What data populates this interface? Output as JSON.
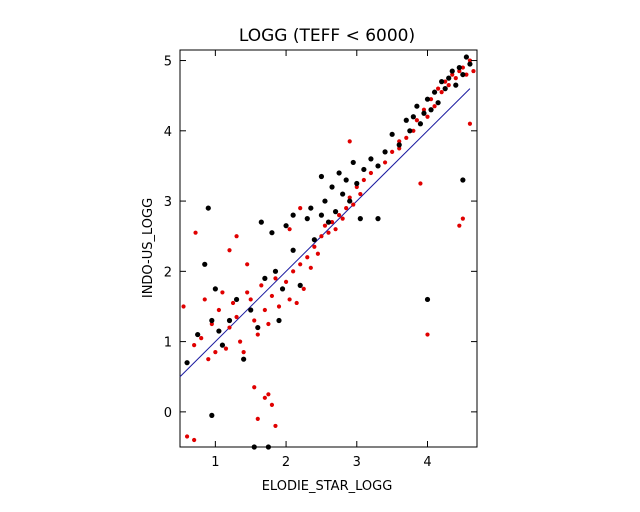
{
  "chart_data": {
    "type": "scatter",
    "title": "LOGG (TEFF < 6000)",
    "xlabel": "ELODIE_STAR_LOGG",
    "ylabel": "INDO-US_LOGG",
    "xlim": [
      0.5,
      4.7
    ],
    "ylim": [
      -0.5,
      5.15
    ],
    "xticks": [
      1,
      2,
      3,
      4
    ],
    "yticks": [
      0,
      1,
      2,
      3,
      4,
      5
    ],
    "grid": false,
    "reference_line": {
      "x": [
        0.5,
        4.6
      ],
      "y": [
        0.5,
        4.6
      ],
      "color": "#1a1aa0"
    },
    "series": [
      {
        "color": "#e00000",
        "points": [
          [
            0.55,
            1.5
          ],
          [
            0.6,
            0.7
          ],
          [
            0.7,
            0.95
          ],
          [
            0.72,
            2.55
          ],
          [
            0.8,
            1.05
          ],
          [
            0.85,
            1.6
          ],
          [
            0.9,
            0.75
          ],
          [
            0.95,
            1.25
          ],
          [
            1.0,
            0.85
          ],
          [
            1.05,
            1.45
          ],
          [
            1.1,
            1.7
          ],
          [
            1.15,
            0.9
          ],
          [
            1.2,
            1.2
          ],
          [
            1.25,
            1.55
          ],
          [
            1.3,
            1.35
          ],
          [
            1.35,
            1.0
          ],
          [
            1.4,
            0.85
          ],
          [
            1.45,
            1.7
          ],
          [
            1.5,
            1.6
          ],
          [
            1.55,
            1.3
          ],
          [
            1.6,
            1.1
          ],
          [
            1.65,
            1.8
          ],
          [
            1.7,
            1.45
          ],
          [
            1.75,
            1.25
          ],
          [
            1.8,
            1.65
          ],
          [
            1.85,
            1.9
          ],
          [
            1.9,
            1.5
          ],
          [
            1.95,
            1.75
          ],
          [
            2.0,
            1.85
          ],
          [
            2.05,
            1.6
          ],
          [
            2.1,
            2.0
          ],
          [
            2.15,
            1.55
          ],
          [
            2.2,
            2.1
          ],
          [
            2.25,
            1.75
          ],
          [
            2.3,
            2.2
          ],
          [
            2.35,
            2.05
          ],
          [
            2.4,
            2.35
          ],
          [
            2.45,
            2.25
          ],
          [
            2.5,
            2.5
          ],
          [
            2.55,
            2.65
          ],
          [
            2.6,
            2.55
          ],
          [
            2.65,
            2.7
          ],
          [
            2.7,
            2.6
          ],
          [
            2.75,
            2.8
          ],
          [
            2.8,
            2.75
          ],
          [
            2.85,
            2.9
          ],
          [
            2.9,
            3.05
          ],
          [
            2.95,
            2.95
          ],
          [
            3.0,
            3.2
          ],
          [
            3.05,
            3.1
          ],
          [
            3.1,
            3.3
          ],
          [
            3.2,
            3.4
          ],
          [
            3.3,
            3.5
          ],
          [
            3.4,
            3.55
          ],
          [
            3.5,
            3.7
          ],
          [
            3.6,
            3.75
          ],
          [
            3.7,
            3.9
          ],
          [
            3.8,
            4.0
          ],
          [
            3.85,
            4.15
          ],
          [
            3.9,
            4.1
          ],
          [
            3.95,
            4.3
          ],
          [
            4.0,
            4.2
          ],
          [
            4.05,
            4.45
          ],
          [
            4.1,
            4.35
          ],
          [
            4.15,
            4.6
          ],
          [
            4.2,
            4.55
          ],
          [
            4.25,
            4.7
          ],
          [
            4.3,
            4.65
          ],
          [
            4.35,
            4.8
          ],
          [
            4.4,
            4.75
          ],
          [
            4.45,
            4.85
          ],
          [
            4.5,
            4.9
          ],
          [
            4.55,
            4.8
          ],
          [
            4.6,
            5.0
          ],
          [
            4.65,
            4.85
          ],
          [
            1.7,
            0.2
          ],
          [
            1.75,
            0.25
          ],
          [
            1.8,
            0.1
          ],
          [
            1.6,
            -0.1
          ],
          [
            1.85,
            -0.2
          ],
          [
            0.6,
            -0.35
          ],
          [
            0.7,
            -0.4
          ],
          [
            1.55,
            0.35
          ],
          [
            4.5,
            2.75
          ],
          [
            4.45,
            2.65
          ],
          [
            4.0,
            1.1
          ],
          [
            4.6,
            4.1
          ],
          [
            3.9,
            3.25
          ],
          [
            1.3,
            2.5
          ],
          [
            1.45,
            2.1
          ],
          [
            1.2,
            2.3
          ],
          [
            2.05,
            2.6
          ],
          [
            2.2,
            2.9
          ],
          [
            3.6,
            3.85
          ],
          [
            2.9,
            3.85
          ]
        ]
      },
      {
        "color": "#000000",
        "points": [
          [
            0.6,
            0.7
          ],
          [
            0.75,
            1.1
          ],
          [
            0.85,
            2.1
          ],
          [
            0.9,
            2.9
          ],
          [
            0.95,
            1.3
          ],
          [
            1.0,
            1.75
          ],
          [
            1.05,
            1.15
          ],
          [
            1.1,
            0.95
          ],
          [
            1.2,
            1.3
          ],
          [
            1.3,
            1.6
          ],
          [
            1.4,
            0.75
          ],
          [
            1.5,
            1.45
          ],
          [
            1.6,
            1.2
          ],
          [
            1.7,
            1.9
          ],
          [
            1.8,
            2.55
          ],
          [
            1.85,
            2.0
          ],
          [
            1.9,
            1.3
          ],
          [
            1.95,
            1.75
          ],
          [
            2.0,
            2.65
          ],
          [
            2.1,
            2.3
          ],
          [
            2.2,
            1.8
          ],
          [
            2.3,
            2.75
          ],
          [
            2.35,
            2.9
          ],
          [
            2.4,
            2.45
          ],
          [
            2.5,
            2.8
          ],
          [
            2.55,
            3.0
          ],
          [
            2.6,
            2.7
          ],
          [
            2.65,
            3.2
          ],
          [
            2.7,
            2.85
          ],
          [
            2.75,
            3.4
          ],
          [
            2.8,
            3.1
          ],
          [
            2.85,
            3.3
          ],
          [
            2.9,
            3.0
          ],
          [
            2.95,
            3.55
          ],
          [
            3.0,
            3.25
          ],
          [
            3.1,
            3.45
          ],
          [
            3.2,
            3.6
          ],
          [
            3.3,
            3.5
          ],
          [
            3.4,
            3.7
          ],
          [
            3.5,
            3.95
          ],
          [
            3.6,
            3.8
          ],
          [
            3.7,
            4.15
          ],
          [
            3.75,
            4.0
          ],
          [
            3.8,
            4.2
          ],
          [
            3.85,
            4.35
          ],
          [
            3.9,
            4.1
          ],
          [
            3.95,
            4.25
          ],
          [
            4.0,
            4.45
          ],
          [
            4.05,
            4.3
          ],
          [
            4.1,
            4.55
          ],
          [
            4.15,
            4.4
          ],
          [
            4.2,
            4.7
          ],
          [
            4.25,
            4.6
          ],
          [
            4.3,
            4.75
          ],
          [
            4.35,
            4.85
          ],
          [
            4.4,
            4.65
          ],
          [
            4.45,
            4.9
          ],
          [
            4.5,
            4.8
          ],
          [
            4.55,
            5.05
          ],
          [
            4.6,
            4.95
          ],
          [
            4.5,
            3.3
          ],
          [
            4.0,
            1.6
          ],
          [
            3.3,
            2.75
          ],
          [
            1.75,
            -0.5
          ],
          [
            1.55,
            -0.5
          ],
          [
            0.95,
            -0.05
          ],
          [
            2.1,
            2.8
          ],
          [
            2.5,
            3.35
          ],
          [
            1.65,
            2.7
          ],
          [
            3.05,
            2.75
          ]
        ]
      }
    ]
  }
}
